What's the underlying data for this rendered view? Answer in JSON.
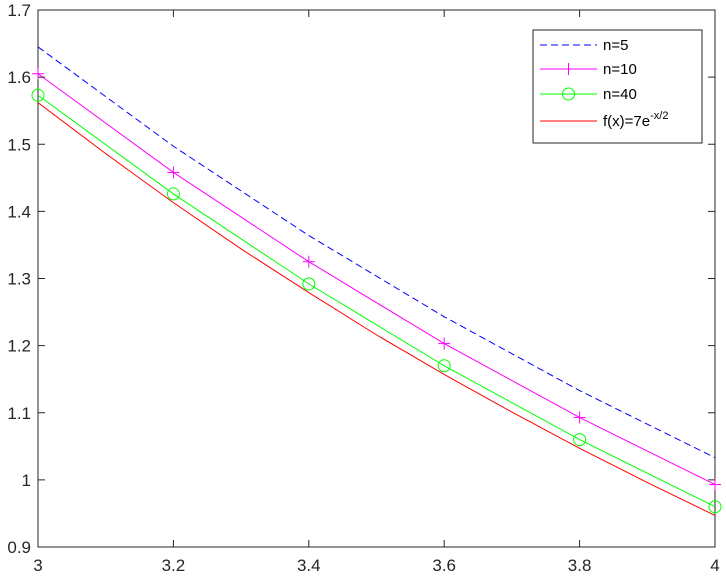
{
  "chart_data": {
    "type": "line",
    "title": "",
    "xlabel": "",
    "ylabel": "",
    "xlim": [
      3,
      4
    ],
    "ylim": [
      0.9,
      1.7
    ],
    "xticks": [
      "3",
      "3.2",
      "3.4",
      "3.6",
      "3.8",
      "4"
    ],
    "yticks": [
      "0.9",
      "1",
      "1.1",
      "1.2",
      "1.3",
      "1.4",
      "1.5",
      "1.6",
      "1.7"
    ],
    "grid": false,
    "legend_position": "top-right",
    "series": [
      {
        "name": "n=5",
        "color": "#0000ff",
        "line_style": "dashed",
        "marker": "none",
        "x": [
          3,
          3.2,
          3.4,
          3.6,
          3.8,
          4
        ],
        "y": [
          1.645,
          1.497,
          1.364,
          1.243,
          1.133,
          1.033
        ]
      },
      {
        "name": "n=10",
        "color": "#ff00ff",
        "line_style": "solid",
        "marker": "plus",
        "x": [
          3,
          3.2,
          3.4,
          3.6,
          3.8,
          4
        ],
        "y": [
          1.605,
          1.458,
          1.325,
          1.203,
          1.093,
          0.993
        ]
      },
      {
        "name": "n=40",
        "color": "#00ff00",
        "line_style": "solid",
        "marker": "circle",
        "x": [
          3,
          3.2,
          3.4,
          3.6,
          3.8,
          4
        ],
        "y": [
          1.573,
          1.426,
          1.292,
          1.17,
          1.06,
          0.96
        ]
      },
      {
        "name_parts": {
          "base": "f(x)=7e",
          "sup": "-x/2"
        },
        "color": "#ff0000",
        "line_style": "solid",
        "marker": "none",
        "x": [
          3,
          3.1,
          3.2,
          3.3,
          3.4,
          3.5,
          3.6,
          3.7,
          3.8,
          3.9,
          4
        ],
        "y": [
          1.562,
          1.486,
          1.413,
          1.344,
          1.279,
          1.216,
          1.157,
          1.101,
          1.047,
          0.996,
          0.947
        ]
      }
    ]
  }
}
